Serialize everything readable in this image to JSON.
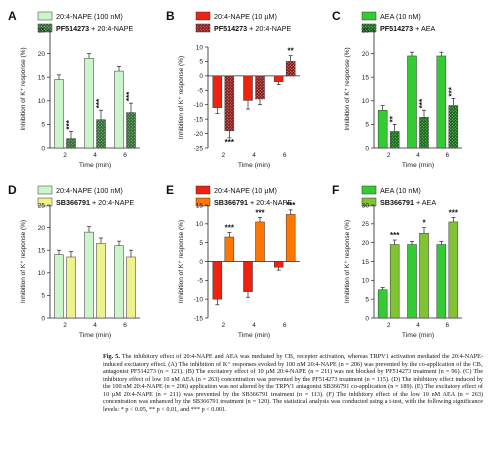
{
  "colors": {
    "light_green": "#ccf5cc",
    "dark_green": "#2e6b2e",
    "red": "#ee2211",
    "dark_red": "#8b1818",
    "bright_green": "#33cc33",
    "deep_green": "#136b13",
    "yellow": "#eef28c",
    "orange": "#ff7700",
    "olive_green": "#80c434"
  },
  "chart_data": [
    {
      "panel": "A",
      "type": "bar",
      "categories": [
        "2",
        "4",
        "6"
      ],
      "xlabel": "Time (min)",
      "ylabel": "Inhibition of K⁺ response (%)",
      "ylim": [
        0,
        25
      ],
      "yticks": [
        0,
        5,
        10,
        15,
        20,
        25
      ],
      "series": [
        {
          "name": "20:4-NAPE (100 nM)",
          "values": [
            14.5,
            19,
            16.3
          ],
          "errors": [
            1.0,
            1.0,
            1.0
          ],
          "color": "#ccf5cc",
          "pattern": false
        },
        {
          "name": "PF514273 + 20:4-NAPE",
          "values": [
            2,
            6,
            7.5
          ],
          "errors": [
            1.5,
            2.0,
            2.0
          ],
          "color": "#2e6b2e",
          "pattern": true
        }
      ],
      "significance": [
        [
          "",
          "***"
        ],
        [
          "",
          "***"
        ],
        [
          "",
          "***"
        ]
      ]
    },
    {
      "panel": "B",
      "type": "bar",
      "categories": [
        "2",
        "4",
        "6"
      ],
      "xlabel": "Time (min)",
      "ylabel": "Inhibition of K⁺ response (%)",
      "ylim": [
        -25,
        10
      ],
      "yticks": [
        -25,
        -20,
        -15,
        -10,
        -5,
        0,
        5,
        10
      ],
      "series": [
        {
          "name": "20:4-NAPE (10 µM)",
          "values": [
            -11,
            -8.5,
            -2
          ],
          "errors": [
            2,
            3,
            1
          ],
          "color": "#ee2211",
          "pattern": false
        },
        {
          "name": "PF514273 + 20:4-NAPE",
          "values": [
            -19,
            -8,
            5
          ],
          "errors": [
            2.5,
            2,
            2
          ],
          "color": "#8b1818",
          "pattern": true
        }
      ],
      "significance": [
        [
          "",
          "***"
        ],
        [
          "",
          ""
        ],
        [
          "",
          "**"
        ]
      ]
    },
    {
      "panel": "C",
      "type": "bar",
      "categories": [
        "2",
        "4",
        "6"
      ],
      "xlabel": "Time (min)",
      "ylabel": "Inhibition of K⁺ response (%)",
      "ylim": [
        0,
        25
      ],
      "yticks": [
        0,
        5,
        10,
        15,
        20,
        25
      ],
      "series": [
        {
          "name": "AEA (10 nM)",
          "values": [
            8,
            19.5,
            19.5
          ],
          "errors": [
            1,
            0.8,
            0.8
          ],
          "color": "#33cc33",
          "pattern": false
        },
        {
          "name": "PF514273 + AEA",
          "values": [
            3.5,
            6.5,
            9
          ],
          "errors": [
            1.5,
            1.5,
            1.5
          ],
          "color": "#136b13",
          "pattern": true
        }
      ],
      "significance": [
        [
          "",
          "**"
        ],
        [
          "",
          "***"
        ],
        [
          "",
          "***"
        ]
      ]
    },
    {
      "panel": "D",
      "type": "bar",
      "categories": [
        "2",
        "4",
        "6"
      ],
      "xlabel": "Time (min)",
      "ylabel": "Inhibition of K⁺ response (%)",
      "ylim": [
        0,
        25
      ],
      "yticks": [
        0,
        5,
        10,
        15,
        20,
        25
      ],
      "series": [
        {
          "name": "20:4-NAPE (100 nM)",
          "values": [
            14,
            19,
            16
          ],
          "errors": [
            1.0,
            1.2,
            1.0
          ],
          "color": "#ccf5cc",
          "pattern": false
        },
        {
          "name": "SB366791 + 20:4-NAPE",
          "values": [
            13.5,
            16.5,
            13.5
          ],
          "errors": [
            1.2,
            1.2,
            1.5
          ],
          "color": "#eef28c",
          "pattern": false
        }
      ],
      "significance": [
        [
          "",
          ""
        ],
        [
          "",
          ""
        ],
        [
          "",
          ""
        ]
      ]
    },
    {
      "panel": "E",
      "type": "bar",
      "categories": [
        "2",
        "4",
        "6"
      ],
      "xlabel": "Time (min)",
      "ylabel": "Inhibition of K⁺ response (%)",
      "ylim": [
        -15,
        15
      ],
      "yticks": [
        -15,
        -10,
        -5,
        0,
        5,
        10,
        15
      ],
      "series": [
        {
          "name": "20:4-NAPE (10 µM)",
          "values": [
            -10,
            -8,
            -1.5
          ],
          "errors": [
            1.5,
            1.5,
            0.8
          ],
          "color": "#ee2211",
          "pattern": false
        },
        {
          "name": "SB366791 + 20:4-NAPE",
          "values": [
            6.5,
            10.5,
            12.5
          ],
          "errors": [
            1.2,
            1.2,
            1.2
          ],
          "color": "#ff7700",
          "pattern": false
        }
      ],
      "significance": [
        [
          "",
          "***"
        ],
        [
          "",
          "***"
        ],
        [
          "",
          "***"
        ]
      ]
    },
    {
      "panel": "F",
      "type": "bar",
      "categories": [
        "2",
        "4",
        "6"
      ],
      "xlabel": "Time (min)",
      "ylabel": "Inhibition of K⁺ response (%)",
      "ylim": [
        0,
        30
      ],
      "yticks": [
        0,
        5,
        10,
        15,
        20,
        25,
        30
      ],
      "series": [
        {
          "name": "AEA (10 nM)",
          "values": [
            7.5,
            19.5,
            19.5
          ],
          "errors": [
            0.6,
            0.8,
            0.8
          ],
          "color": "#33cc33",
          "pattern": false
        },
        {
          "name": "SB366791 + AEA",
          "values": [
            19.5,
            22.5,
            25.5
          ],
          "errors": [
            1.2,
            1.5,
            1.2
          ],
          "color": "#80c434",
          "pattern": false
        }
      ],
      "significance": [
        [
          "",
          "***"
        ],
        [
          "",
          "*"
        ],
        [
          "",
          "***"
        ]
      ]
    }
  ],
  "caption": {
    "fig_label": "Fig. 5.",
    "text": "The inhibitory effect of 20:4-NAPE and AEA was mediated by CB₁ receptor activation, whereas TRPV1 activation mediated the 20:4-NAPE-induced excitatory effect. (A) The inhibition of K⁺ responses evoked by 100 nM 20:4-NAPE (n = 206) was prevented by the co-application of the CB₁ antagonist PF514273 (n = 121). (B) The excitatory effect of 10 µM 20:4-NAPE (n = 211) was not blocked by PF514273 treatment (n = 96). (C) The inhibitory effect of low 10 nM AEA (n = 263) concentration was prevented by the PF514273 treatment (n = 115). (D) The inhibitory effect induced by the 100 nM 20:4-NAPE (n = 206) application was not altered by the TRPV1 antagonist SB366791 co-application (n = 189). (E) The excitatory effect of 10 µM 20:4-NAPE (n = 211) was prevented by the SB366791 treatment (n = 113). (F) The inhibitory effect of the low 10 nM AEA (n = 263) concentration was enhanced by the SB366791 treatment (n = 120). The statistical analysis was conducted using a t-test, with the following significance levels: * p < 0.05, ** p < 0.01, and *** p < 0.001."
  }
}
